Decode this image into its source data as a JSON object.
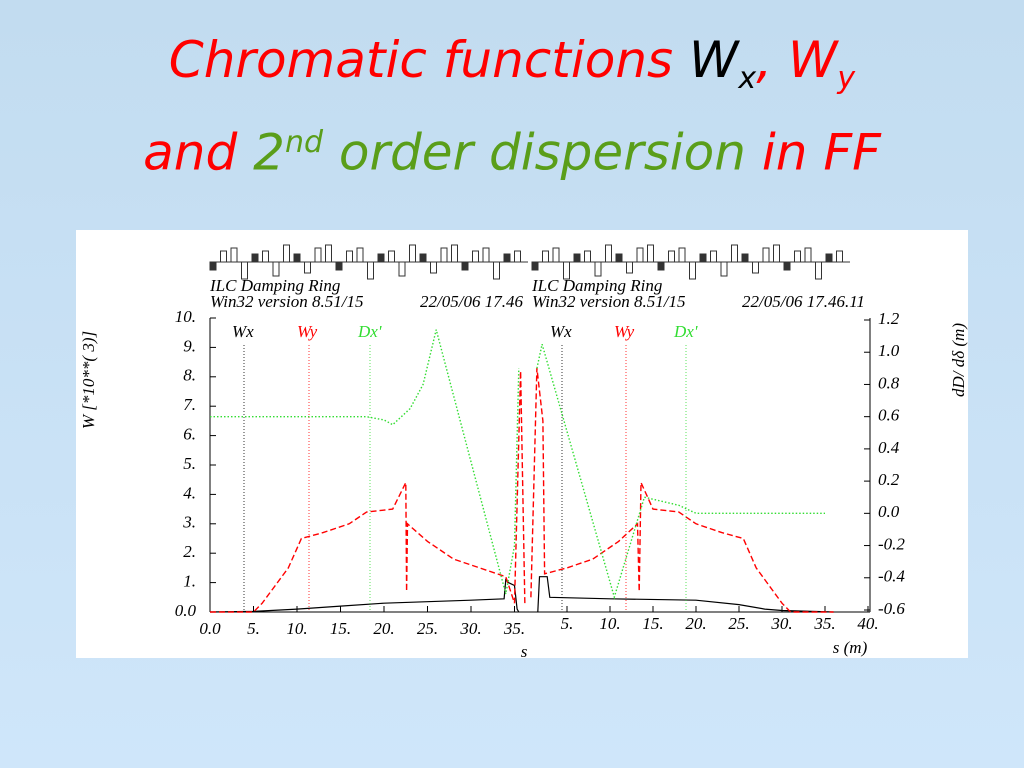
{
  "slide_title": {
    "lines": [
      [
        {
          "text": "Chromatic functions ",
          "color": "#ff0000"
        },
        {
          "text": "W",
          "color": "#000000"
        },
        {
          "text": "x",
          "color": "#000000",
          "style": "sub"
        },
        {
          "text": ", W",
          "color": "#ff0000"
        },
        {
          "text": "y",
          "color": "#ff0000",
          "style": "sub"
        }
      ],
      [
        {
          "text": "and ",
          "color": "#ff0000"
        },
        {
          "text": "2",
          "color": "#5a9e1a"
        },
        {
          "text": "nd",
          "color": "#5a9e1a",
          "style": "sup"
        },
        {
          "text": " order dispersion ",
          "color": "#5a9e1a"
        },
        {
          "text": "in FF",
          "color": "#ff0000"
        }
      ]
    ]
  },
  "chart_data": [
    {
      "type": "line",
      "header": [
        "ILC Damping Ring",
        "Win32 version 8.51/15",
        "22/05/06  17.46"
      ],
      "ylabel": "W    [*10**(   3)]",
      "xlabel": "s",
      "xlim": [
        0,
        35
      ],
      "xticks": [
        {
          "value": 0,
          "label": "0.0"
        },
        {
          "value": 5,
          "label": "5."
        },
        {
          "value": 10,
          "label": "10."
        },
        {
          "value": 15,
          "label": "15."
        },
        {
          "value": 20,
          "label": "20."
        },
        {
          "value": 25,
          "label": "25."
        },
        {
          "value": 30,
          "label": "30."
        },
        {
          "value": 35,
          "label": "35."
        }
      ],
      "ylim": [
        0,
        10
      ],
      "yticks": [
        {
          "value": 0,
          "label": "0.0"
        },
        {
          "value": 1,
          "label": "1."
        },
        {
          "value": 2,
          "label": "2."
        },
        {
          "value": 3,
          "label": "3."
        },
        {
          "value": 4,
          "label": "4."
        },
        {
          "value": 5,
          "label": "5."
        },
        {
          "value": 6,
          "label": "6."
        },
        {
          "value": 7,
          "label": "7."
        },
        {
          "value": 8,
          "label": "8."
        },
        {
          "value": 9,
          "label": "9."
        },
        {
          "value": 10,
          "label": "10."
        }
      ],
      "y2lim": [
        -0.6,
        1.2
      ],
      "series": [
        {
          "name": "Wx",
          "color": "#000000",
          "dash": "solid",
          "x": [
            0,
            5,
            10,
            15,
            20,
            25,
            30,
            33.8,
            34,
            34.3,
            35,
            35.3,
            35.5
          ],
          "values": [
            0,
            0.02,
            0.1,
            0.2,
            0.3,
            0.35,
            0.4,
            0.45,
            1.1,
            1.0,
            0.9,
            0.1,
            0
          ]
        },
        {
          "name": "Wy",
          "color": "#ff0000",
          "dash": "dashed",
          "x": [
            0,
            5,
            6,
            9,
            10.5,
            13,
            16,
            18,
            21,
            22.5,
            22.6,
            22.7,
            25,
            28,
            31,
            33,
            34,
            35,
            35.7,
            36.2
          ],
          "values": [
            0,
            0,
            0.3,
            1.5,
            2.5,
            2.7,
            3.0,
            3.4,
            3.5,
            4.4,
            0.7,
            3.0,
            2.4,
            1.8,
            1.5,
            1.3,
            1.2,
            0.3,
            8.2,
            0.2
          ]
        },
        {
          "name": "Dx'",
          "color": "#33dd33",
          "dash": "dotted",
          "axis": "y2",
          "x": [
            0,
            10,
            18,
            20,
            21,
            23,
            24.5,
            26,
            34,
            35,
            35.5
          ],
          "values": [
            0.6,
            0.6,
            0.6,
            0.58,
            0.55,
            0.65,
            0.8,
            1.14,
            -0.5,
            -0.2,
            0.9
          ]
        }
      ]
    },
    {
      "type": "line",
      "header": [
        "ILC Damping Ring",
        "Win32 version 8.51/15",
        "22/05/06   17.46.11"
      ],
      "y2label": "dD/ dδ (m)",
      "xlabel": "s (m)",
      "xlim": [
        0,
        40
      ],
      "xticks": [
        {
          "value": 5,
          "label": "5."
        },
        {
          "value": 10,
          "label": "10."
        },
        {
          "value": 15,
          "label": "15."
        },
        {
          "value": 20,
          "label": "20."
        },
        {
          "value": 25,
          "label": "25."
        },
        {
          "value": 30,
          "label": "30."
        },
        {
          "value": 35,
          "label": "35."
        },
        {
          "value": 40,
          "label": "40."
        }
      ],
      "ylim": [
        0,
        10
      ],
      "y2lim": [
        -0.6,
        1.2
      ],
      "y2ticks": [
        -0.6,
        -0.4,
        -0.2,
        {
          "value": 0,
          "label": "0.0"
        },
        0.2,
        0.4,
        0.6,
        0.8,
        {
          "value": 1,
          "label": "1.0"
        },
        1.2
      ],
      "series": [
        {
          "name": "Wx",
          "color": "#000000",
          "dash": "solid",
          "x": [
            1.6,
            1.8,
            2.7,
            3,
            10,
            20,
            25,
            28,
            30,
            36
          ],
          "values": [
            0,
            1.2,
            1.2,
            0.5,
            0.45,
            0.4,
            0.25,
            0.1,
            0.05,
            0
          ]
        },
        {
          "name": "Wy",
          "color": "#ff0000",
          "dash": "dashed",
          "x": [
            0.8,
            1.5,
            2.2,
            2.4,
            5,
            8,
            11,
            13.2,
            13.4,
            13.6,
            15,
            18,
            20,
            23,
            25.5,
            27,
            30,
            31,
            36
          ],
          "values": [
            0.5,
            8.3,
            6.5,
            1.3,
            1.5,
            1.8,
            2.4,
            3.0,
            0.7,
            4.4,
            3.5,
            3.4,
            3.0,
            2.7,
            2.5,
            1.5,
            0.3,
            0,
            0
          ]
        },
        {
          "name": "Dx'",
          "color": "#33dd33",
          "dash": "dotted",
          "axis": "y2",
          "x": [
            1.5,
            2.1,
            10.5,
            14,
            18,
            20,
            35
          ],
          "values": [
            0.9,
            1.05,
            -0.52,
            0.1,
            0.05,
            0,
            0
          ]
        }
      ]
    }
  ]
}
